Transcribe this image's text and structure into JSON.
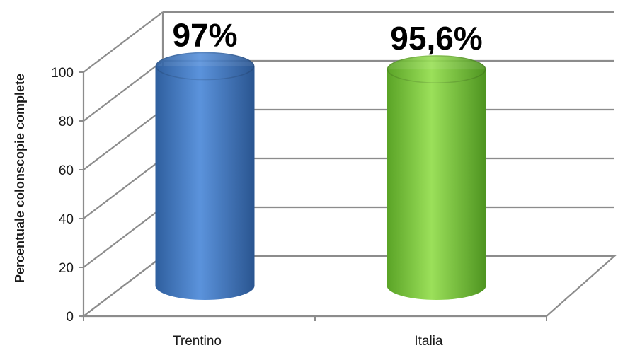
{
  "chart_data": {
    "type": "bar",
    "style": "3d-cylinder",
    "categories": [
      "Trentino",
      "Italia"
    ],
    "values": [
      97,
      95.6
    ],
    "data_labels": [
      "97%",
      "95,6%"
    ],
    "colors": [
      "#4a80c8",
      "#7acc3a"
    ],
    "ylabel": "Percentuale colonscopie complete",
    "xlabel": "",
    "ylim": [
      0,
      100
    ],
    "yticks": [
      "0",
      "20",
      "40",
      "60",
      "80",
      "100"
    ],
    "grid": true,
    "legend": "none"
  }
}
